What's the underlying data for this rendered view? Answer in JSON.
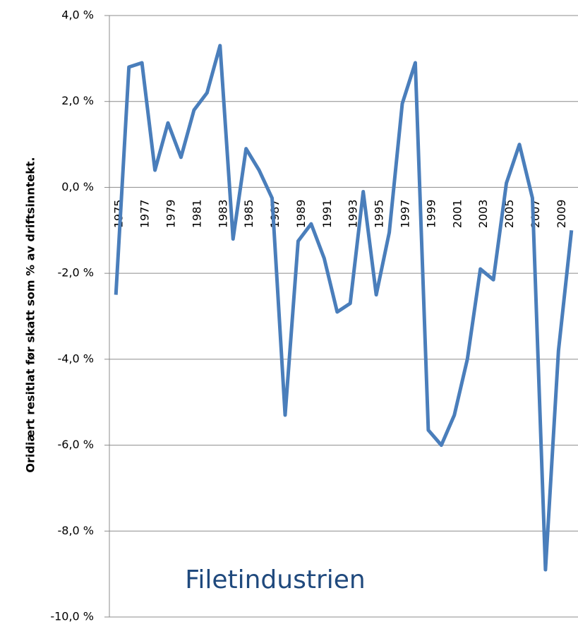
{
  "chart_data": {
    "type": "line",
    "y_label": "Oridiært resitlat før skatt som % av driftsinntekt.",
    "annotation": "Filetindustrien",
    "categories": [
      "1975",
      null,
      "1977",
      null,
      "1979",
      null,
      "1981",
      null,
      "1983",
      null,
      "1985",
      null,
      "1987",
      null,
      "1989",
      null,
      "1991",
      null,
      "1993",
      null,
      "1995",
      null,
      "1997",
      null,
      "1999",
      null,
      "2001",
      null,
      "2003",
      null,
      "2005",
      null,
      "2007",
      null,
      "2009",
      null
    ],
    "series": [
      {
        "color": "#4a7ebb",
        "values": [
          -2.5,
          2.8,
          2.9,
          0.4,
          1.5,
          0.7,
          1.8,
          2.2,
          3.3,
          -1.2,
          0.9,
          0.4,
          -0.25,
          -5.3,
          -1.25,
          -0.85,
          -1.65,
          -2.9,
          -2.7,
          -0.1,
          -2.5,
          -1.05,
          1.95,
          2.9,
          -5.65,
          -6.0,
          -5.3,
          -4.0,
          -1.9,
          -2.15,
          0.1,
          1.0,
          -0.25,
          -8.9,
          -3.8,
          -1.0
        ]
      }
    ],
    "ylim": [
      -10,
      4
    ],
    "yticks": [
      {
        "value": -10,
        "label": "-10,0 %"
      },
      {
        "value": -8,
        "label": "-8,0 %"
      },
      {
        "value": -6,
        "label": "-6,0 %"
      },
      {
        "value": -4,
        "label": "-4,0 %"
      },
      {
        "value": -2,
        "label": "-2,0 %"
      },
      {
        "value": 0,
        "label": "0,0 %"
      },
      {
        "value": 2,
        "label": "2,0 %"
      },
      {
        "value": 4,
        "label": "4,0 %"
      }
    ],
    "grid": true
  }
}
